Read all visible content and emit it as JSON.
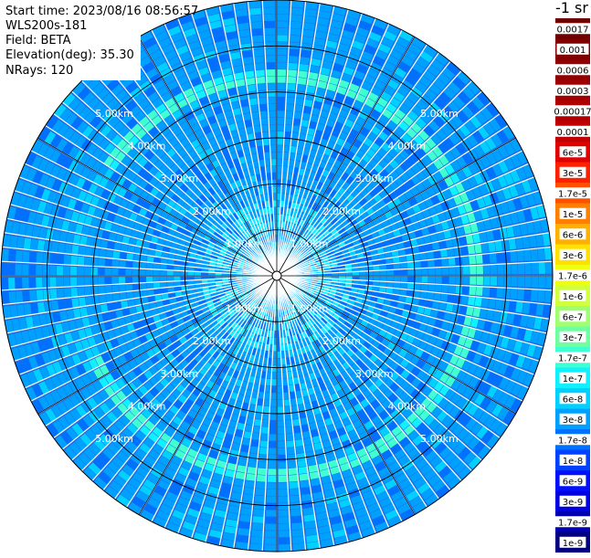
{
  "info": {
    "start_time": "Start time: 2023/08/16 08:56:57",
    "device": "WLS200s-181",
    "field": "Field: BETA",
    "elevation": "Elevation(deg): 35.30",
    "nrays": "NRays: 120"
  },
  "chart_data": {
    "type": "heatmap",
    "projection": "polar-ppi",
    "title": "",
    "range_rings_km": [
      1,
      2,
      3,
      4,
      5
    ],
    "range_ring_labels": [
      "1.00km",
      "2.00km",
      "3.00km",
      "4.00km",
      "5.00km"
    ],
    "max_range_km": 6.0,
    "rays": 120,
    "background_level": 6,
    "features": [
      {
        "shape": "ring",
        "radius_km": 4.35,
        "width_km": 0.12,
        "level": 12
      },
      {
        "shape": "ring",
        "radius_km": 4.25,
        "width_km": 0.25,
        "level": 9
      }
    ],
    "colorbar": {
      "unit": "-1 sr",
      "levels": [
        "1e-9",
        "1.7e-9",
        "3e-9",
        "6e-9",
        "1e-8",
        "1.7e-8",
        "3e-8",
        "6e-8",
        "1e-7",
        "1.7e-7",
        "3e-7",
        "6e-7",
        "1e-6",
        "1.7e-6",
        "3e-6",
        "6e-6",
        "1e-5",
        "1.7e-5",
        "3e-5",
        "6e-5",
        "0.0001",
        "0.00017",
        "0.0003",
        "0.0006",
        "0.001",
        "0.0017"
      ],
      "colors": [
        "#000080",
        "#0000b0",
        "#0000e0",
        "#0010ff",
        "#0040ff",
        "#0070ff",
        "#00a0ff",
        "#00d0ff",
        "#10f0ff",
        "#40ffd0",
        "#70ffa0",
        "#a0ff70",
        "#d0ff40",
        "#f0ff10",
        "#ffe000",
        "#ffb000",
        "#ff8000",
        "#ff5000",
        "#ff2000",
        "#e00000",
        "#c00000",
        "#b00000",
        "#a00000",
        "#900000",
        "#800000",
        "#700000"
      ]
    }
  }
}
